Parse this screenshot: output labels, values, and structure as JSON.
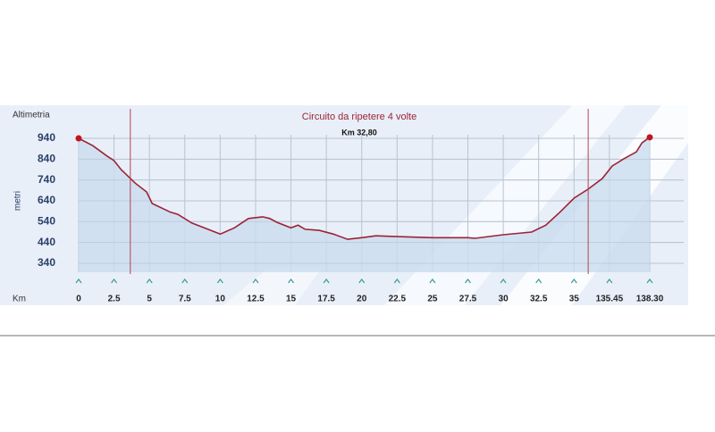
{
  "chart_data": {
    "type": "area",
    "title": "Altimetria",
    "y_label": "metri",
    "x_label": "Km",
    "annotation": "Circuito da ripetere 4 volte",
    "annotation_sub": "Km 32,80",
    "circuit_bounds": [
      3.65,
      36
    ],
    "color": "#9b2335",
    "fill": "#c9dcef",
    "grid": true,
    "x": [
      0,
      1,
      2,
      2.5,
      3,
      4,
      4.8,
      5.2,
      6.5,
      7,
      8,
      9,
      10,
      11,
      12,
      13,
      13.5,
      14,
      15,
      15.5,
      16,
      17,
      18,
      19,
      20,
      21,
      22.5,
      25,
      27.5,
      28,
      30,
      32,
      33,
      34,
      35,
      36,
      37,
      37.7,
      38.5,
      39.4,
      39.8,
      40.35
    ],
    "values": [
      940,
      905,
      855,
      833,
      790,
      725,
      683,
      627,
      585,
      575,
      533,
      507,
      480,
      510,
      555,
      563,
      555,
      537,
      510,
      523,
      503,
      498,
      480,
      455,
      463,
      472,
      468,
      463,
      463,
      460,
      477,
      490,
      523,
      585,
      653,
      696,
      747,
      807,
      841,
      875,
      918,
      945
    ],
    "xlim": [
      0,
      40.35
    ],
    "xticks": [
      0,
      2.5,
      5,
      7.5,
      10,
      12.5,
      15,
      17.5,
      20,
      22.5,
      25,
      27.5,
      30,
      32.5,
      35,
      {
        "value": 37.5,
        "label": "135.45"
      },
      {
        "value": 40.35,
        "label": "138.30"
      }
    ],
    "ylim": [
      297,
      1000
    ],
    "yticks": [
      340,
      440,
      540,
      640,
      740,
      840,
      940
    ]
  }
}
